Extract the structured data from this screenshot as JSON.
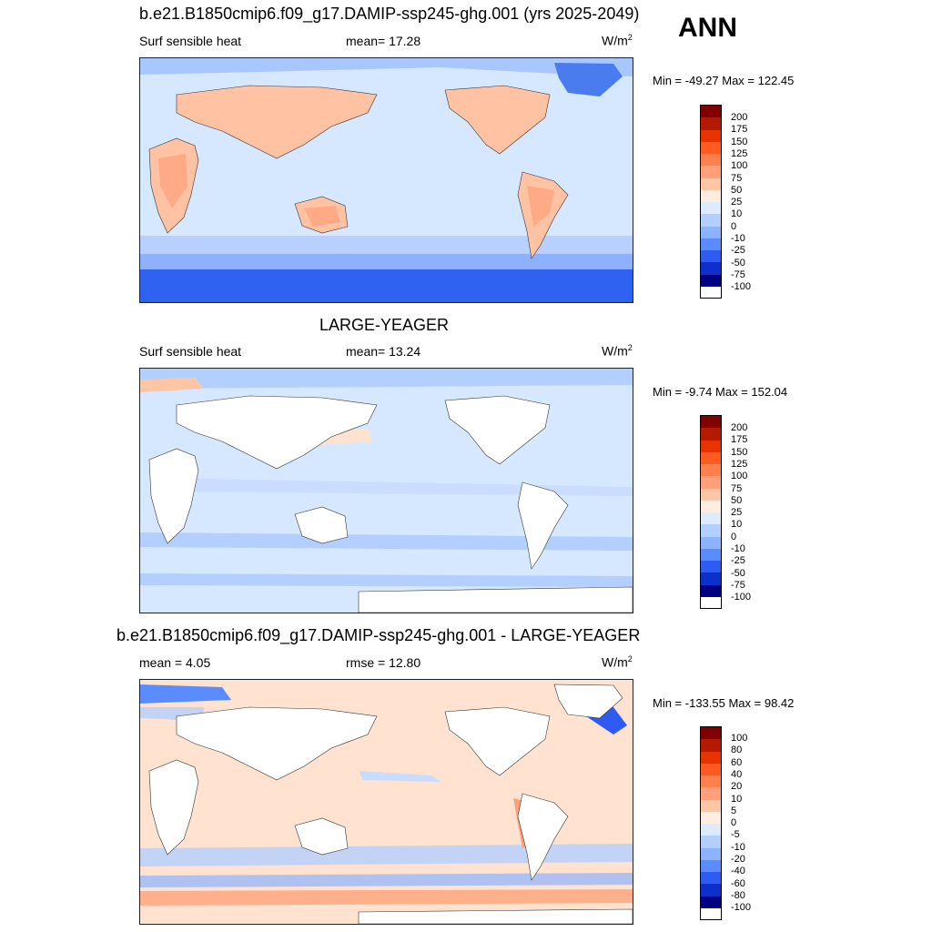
{
  "season": "ANN",
  "panels": [
    {
      "title": "b.e21.B1850cmip6.f09_g17.DAMIP-ssp245-ghg.001 (yrs 2025-2049)",
      "left_label": "Surf sensible heat",
      "mid_label": "mean=  17.28",
      "units": "W/m",
      "units_sup": "2",
      "minmax": "Min = -49.27 Max = 122.45",
      "colorbar_labels": [
        "200",
        "175",
        "150",
        "125",
        "100",
        "75",
        "50",
        "25",
        "10",
        "0",
        "-10",
        "-25",
        "-50",
        "-75",
        "-100"
      ],
      "ocean_color": "#d6e8ff",
      "land_style": "filled"
    },
    {
      "title": "LARGE-YEAGER",
      "left_label": "Surf sensible heat",
      "mid_label": "mean=  13.24",
      "units": "W/m",
      "units_sup": "2",
      "minmax": "Min =  -9.74 Max = 152.04",
      "colorbar_labels": [
        "200",
        "175",
        "150",
        "125",
        "100",
        "75",
        "50",
        "25",
        "10",
        "0",
        "-10",
        "-25",
        "-50",
        "-75",
        "-100"
      ],
      "ocean_color": "#d6e8ff",
      "land_style": "blank"
    },
    {
      "title": "b.e21.B1850cmip6.f09_g17.DAMIP-ssp245-ghg.001 - LARGE-YEAGER",
      "left_label": "mean =   4.05",
      "mid_label": "rmse =  12.80",
      "units": "W/m",
      "units_sup": "2",
      "minmax": "Min = -133.55 Max =  98.42",
      "colorbar_labels": [
        "100",
        "80",
        "60",
        "40",
        "20",
        "10",
        "5",
        "0",
        "-5",
        "-10",
        "-20",
        "-40",
        "-60",
        "-80",
        "-100"
      ],
      "ocean_color": "#ffe2cf",
      "land_style": "blank"
    }
  ],
  "colorbar_colors": [
    "#800000",
    "#b31a00",
    "#e63300",
    "#ff5a1f",
    "#ff7f4d",
    "#ffa07a",
    "#ffc6a6",
    "#ffede0",
    "#deebff",
    "#b3cfff",
    "#8cb3ff",
    "#5a8cff",
    "#2e5cf2",
    "#0d2fcc",
    "#000080"
  ]
}
